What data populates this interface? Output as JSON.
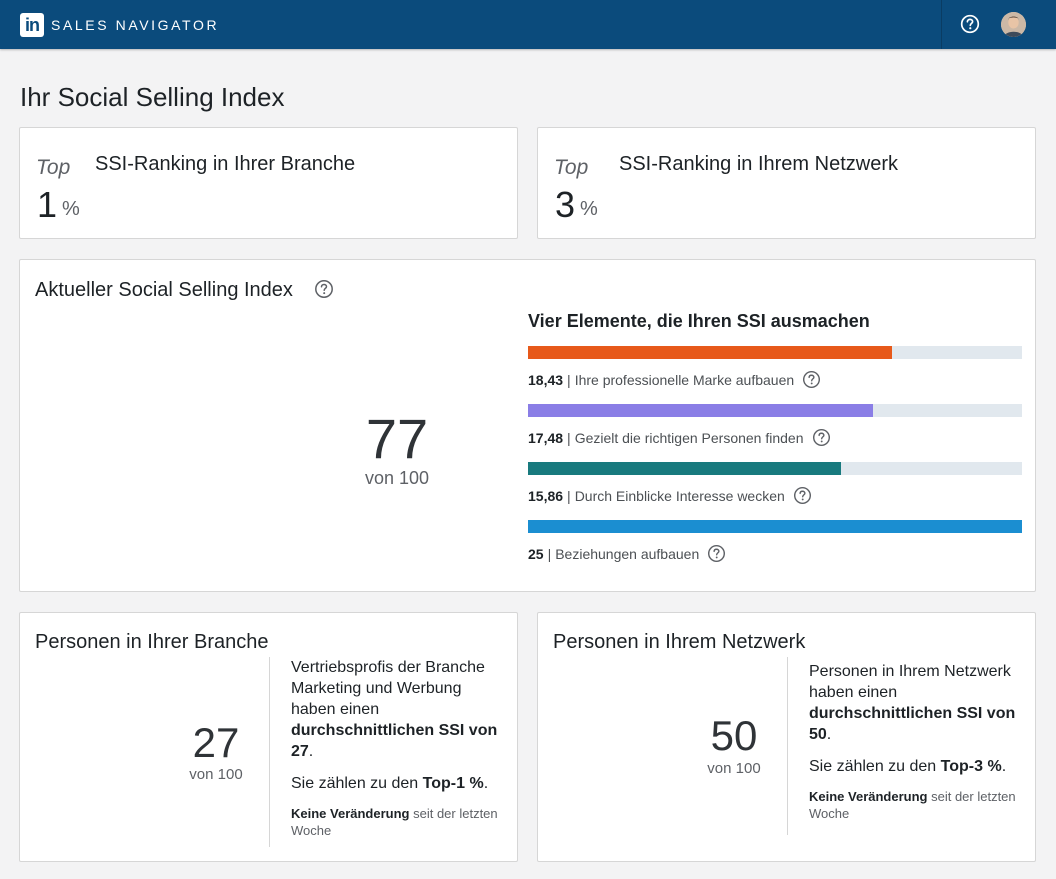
{
  "header": {
    "logo_text": "in",
    "brand": "SALES NAVIGATOR",
    "background": "#0b4b7c"
  },
  "page_title": "Ihr Social Selling Index",
  "rankings": [
    {
      "prefix": "Top",
      "value": "1",
      "unit": "%",
      "title": "SSI-Ranking in Ihrer Branche"
    },
    {
      "prefix": "Top",
      "value": "3",
      "unit": "%",
      "title": "SSI-Ranking in Ihrem Netzwerk"
    }
  ],
  "ssi": {
    "title": "Aktueller Social Selling Index",
    "score": "77",
    "out_of": "von 100",
    "elements_title": "Vier Elemente, die Ihren SSI ausmachen",
    "max_per_element": 25,
    "elements": [
      {
        "value": "18,43",
        "num": 18.43,
        "label": "Ihre professionelle Marke aufbauen",
        "color": "#e7591a"
      },
      {
        "value": "17,48",
        "num": 17.48,
        "label": "Gezielt die richtigen Personen finden",
        "color": "#8a7ee6"
      },
      {
        "value": "15,86",
        "num": 15.86,
        "label": "Durch Einblicke Interesse wecken",
        "color": "#187a7e"
      },
      {
        "value": "25",
        "num": 25,
        "label": "Beziehungen aufbauen",
        "color": "#1b8ed1"
      }
    ]
  },
  "people": [
    {
      "title": "Personen in Ihrer Branche",
      "score": "27",
      "out_of": "von 100",
      "text_1": "Vertriebsprofis der Branche Marketing und Werbung haben einen ",
      "text_bold": "durchschnittlichen SSI von 27",
      "text_2": ".",
      "rank_text": "Sie zählen zu den ",
      "rank_bold": "Top-1 %",
      "rank_end": ".",
      "change_bold": "Keine Veränderung",
      "change_text": " seit der letzten Woche"
    },
    {
      "title": "Personen in Ihrem Netzwerk",
      "score": "50",
      "out_of": "von 100",
      "text_1": "Personen in Ihrem Netzwerk haben einen ",
      "text_bold": "durchschnittlichen SSI von 50",
      "text_2": ".",
      "rank_text": "Sie zählen zu den ",
      "rank_bold": "Top-3 %",
      "rank_end": ".",
      "change_bold": "Keine Veränderung",
      "change_text": " seit der letzten Woche"
    }
  ]
}
